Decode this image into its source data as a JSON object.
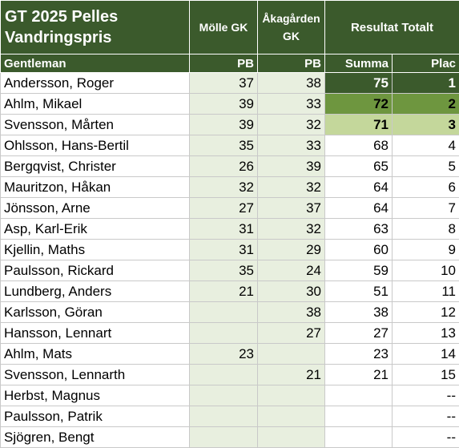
{
  "header": {
    "title": "GT 2025 Pelles Vandringspris",
    "col_molle": "Mölle GK",
    "col_aka": "Åkagården GK",
    "col_result": "Resultat Totalt"
  },
  "subheader": {
    "name": "Gentleman",
    "molle": "PB",
    "aka": "PB",
    "summa": "Summa",
    "plac": "Plac"
  },
  "highlight_colors": {
    "header_bg": "#3b5a2c",
    "first_place": "#3b5a2c",
    "second_place": "#6e963f",
    "third_place": "#c4d79b",
    "score_cell_bg": "#e8efdf"
  },
  "rows": [
    {
      "name": "Andersson, Roger",
      "molle": "37",
      "aka": "38",
      "summa": "75",
      "plac": "1"
    },
    {
      "name": "Ahlm, Mikael",
      "molle": "39",
      "aka": "33",
      "summa": "72",
      "plac": "2"
    },
    {
      "name": "Svensson, Mårten",
      "molle": "39",
      "aka": "32",
      "summa": "71",
      "plac": "3"
    },
    {
      "name": "Ohlsson, Hans-Bertil",
      "molle": "35",
      "aka": "33",
      "summa": "68",
      "plac": "4"
    },
    {
      "name": "Bergqvist, Christer",
      "molle": "26",
      "aka": "39",
      "summa": "65",
      "plac": "5"
    },
    {
      "name": "Mauritzon, Håkan",
      "molle": "32",
      "aka": "32",
      "summa": "64",
      "plac": "6"
    },
    {
      "name": "Jönsson, Arne",
      "molle": "27",
      "aka": "37",
      "summa": "64",
      "plac": "7"
    },
    {
      "name": "Asp, Karl-Erik",
      "molle": "31",
      "aka": "32",
      "summa": "63",
      "plac": "8"
    },
    {
      "name": "Kjellin, Maths",
      "molle": "31",
      "aka": "29",
      "summa": "60",
      "plac": "9"
    },
    {
      "name": "Paulsson, Rickard",
      "molle": "35",
      "aka": "24",
      "summa": "59",
      "plac": "10"
    },
    {
      "name": "Lundberg, Anders",
      "molle": "21",
      "aka": "30",
      "summa": "51",
      "plac": "11"
    },
    {
      "name": "Karlsson, Göran",
      "molle": "",
      "aka": "38",
      "summa": "38",
      "plac": "12"
    },
    {
      "name": "Hansson, Lennart",
      "molle": "",
      "aka": "27",
      "summa": "27",
      "plac": "13"
    },
    {
      "name": "Ahlm, Mats",
      "molle": "23",
      "aka": "",
      "summa": "23",
      "plac": "14"
    },
    {
      "name": "Svensson, Lennarth",
      "molle": "",
      "aka": "21",
      "summa": "21",
      "plac": "15"
    },
    {
      "name": "Herbst, Magnus",
      "molle": "",
      "aka": "",
      "summa": "",
      "plac": "--"
    },
    {
      "name": "Paulsson, Patrik",
      "molle": "",
      "aka": "",
      "summa": "",
      "plac": "--"
    },
    {
      "name": "Sjögren, Bengt",
      "molle": "",
      "aka": "",
      "summa": "",
      "plac": "--"
    }
  ]
}
